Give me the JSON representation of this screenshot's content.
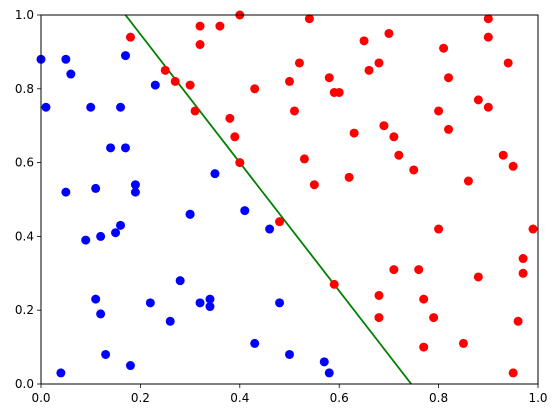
{
  "chart_data": {
    "type": "scatter",
    "title": "",
    "xlabel": "",
    "ylabel": "",
    "xlim": [
      0,
      1
    ],
    "ylim": [
      0,
      1
    ],
    "grid": false,
    "x_ticks": [
      {
        "value": 0.0,
        "label": "0.0"
      },
      {
        "value": 0.2,
        "label": "0.2"
      },
      {
        "value": 0.4,
        "label": "0.4"
      },
      {
        "value": 0.6,
        "label": "0.6"
      },
      {
        "value": 0.8,
        "label": "0.8"
      },
      {
        "value": 1.0,
        "label": "1.0"
      }
    ],
    "y_ticks": [
      {
        "value": 0.0,
        "label": "0.0"
      },
      {
        "value": 0.2,
        "label": "0.2"
      },
      {
        "value": 0.4,
        "label": "0.4"
      },
      {
        "value": 0.6,
        "label": "0.6"
      },
      {
        "value": 0.8,
        "label": "0.8"
      },
      {
        "value": 1.0,
        "label": "1.0"
      }
    ],
    "series": [
      {
        "color": "#0000ff",
        "points": [
          [
            0.0,
            0.88
          ],
          [
            0.01,
            0.75
          ],
          [
            0.05,
            0.88
          ],
          [
            0.06,
            0.84
          ],
          [
            0.05,
            0.52
          ],
          [
            0.04,
            0.03
          ],
          [
            0.1,
            0.75
          ],
          [
            0.11,
            0.53
          ],
          [
            0.09,
            0.39
          ],
          [
            0.12,
            0.4
          ],
          [
            0.11,
            0.23
          ],
          [
            0.12,
            0.19
          ],
          [
            0.13,
            0.08
          ],
          [
            0.14,
            0.64
          ],
          [
            0.15,
            0.41
          ],
          [
            0.16,
            0.43
          ],
          [
            0.16,
            0.75
          ],
          [
            0.17,
            0.64
          ],
          [
            0.17,
            0.89
          ],
          [
            0.19,
            0.54
          ],
          [
            0.19,
            0.52
          ],
          [
            0.18,
            0.05
          ],
          [
            0.23,
            0.81
          ],
          [
            0.22,
            0.22
          ],
          [
            0.26,
            0.17
          ],
          [
            0.28,
            0.28
          ],
          [
            0.3,
            0.46
          ],
          [
            0.3,
            0.46
          ],
          [
            0.32,
            0.22
          ],
          [
            0.34,
            0.23
          ],
          [
            0.34,
            0.21
          ],
          [
            0.35,
            0.57
          ],
          [
            0.41,
            0.47
          ],
          [
            0.43,
            0.11
          ],
          [
            0.46,
            0.42
          ],
          [
            0.48,
            0.22
          ],
          [
            0.5,
            0.08
          ],
          [
            0.57,
            0.06
          ],
          [
            0.58,
            0.03
          ]
        ]
      },
      {
        "color": "#ff0000",
        "points": [
          [
            0.18,
            0.94
          ],
          [
            0.25,
            0.85
          ],
          [
            0.27,
            0.82
          ],
          [
            0.3,
            0.81
          ],
          [
            0.32,
            0.97
          ],
          [
            0.32,
            0.92
          ],
          [
            0.31,
            0.74
          ],
          [
            0.36,
            0.97
          ],
          [
            0.38,
            0.72
          ],
          [
            0.4,
            1.0
          ],
          [
            0.39,
            0.67
          ],
          [
            0.4,
            0.6
          ],
          [
            0.43,
            0.8
          ],
          [
            0.48,
            0.44
          ],
          [
            0.5,
            0.82
          ],
          [
            0.51,
            0.74
          ],
          [
            0.52,
            0.87
          ],
          [
            0.53,
            0.61
          ],
          [
            0.54,
            0.99
          ],
          [
            0.55,
            0.54
          ],
          [
            0.58,
            0.83
          ],
          [
            0.59,
            0.79
          ],
          [
            0.6,
            0.79
          ],
          [
            0.59,
            0.27
          ],
          [
            0.62,
            0.56
          ],
          [
            0.63,
            0.68
          ],
          [
            0.65,
            0.93
          ],
          [
            0.66,
            0.85
          ],
          [
            0.68,
            0.87
          ],
          [
            0.69,
            0.7
          ],
          [
            0.7,
            0.95
          ],
          [
            0.71,
            0.67
          ],
          [
            0.72,
            0.62
          ],
          [
            0.68,
            0.24
          ],
          [
            0.68,
            0.18
          ],
          [
            0.71,
            0.31
          ],
          [
            0.75,
            0.58
          ],
          [
            0.76,
            0.31
          ],
          [
            0.77,
            0.23
          ],
          [
            0.77,
            0.1
          ],
          [
            0.79,
            0.18
          ],
          [
            0.8,
            0.74
          ],
          [
            0.8,
            0.42
          ],
          [
            0.81,
            0.91
          ],
          [
            0.82,
            0.83
          ],
          [
            0.82,
            0.69
          ],
          [
            0.85,
            0.11
          ],
          [
            0.86,
            0.55
          ],
          [
            0.88,
            0.77
          ],
          [
            0.88,
            0.29
          ],
          [
            0.9,
            0.75
          ],
          [
            0.9,
            0.99
          ],
          [
            0.9,
            0.94
          ],
          [
            0.93,
            0.62
          ],
          [
            0.94,
            0.87
          ],
          [
            0.95,
            0.59
          ],
          [
            0.95,
            0.03
          ],
          [
            0.96,
            0.17
          ],
          [
            0.97,
            0.3
          ],
          [
            0.97,
            0.34
          ],
          [
            0.99,
            0.42
          ]
        ]
      }
    ],
    "lines": [
      {
        "color": "#008000",
        "points": [
          [
            0.17,
            1.0
          ],
          [
            0.745,
            0.0
          ]
        ]
      }
    ]
  }
}
